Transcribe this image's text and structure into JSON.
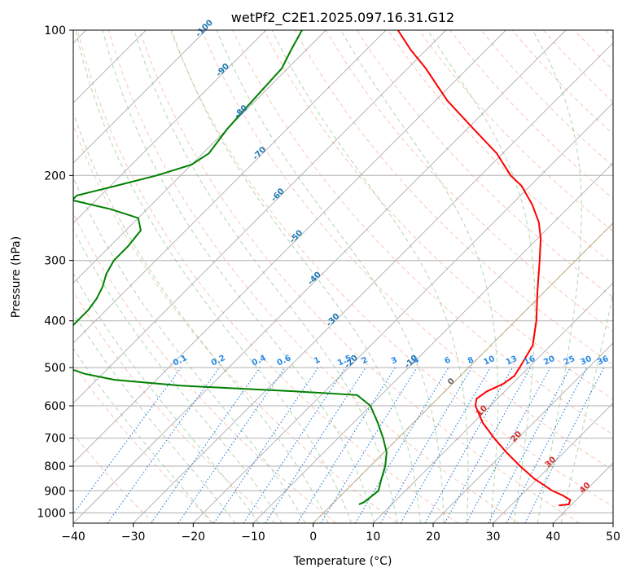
{
  "chart_data": {
    "type": "line",
    "title": "wetPf2_C2E1.2025.097.16.31.G12",
    "xlabel": "Temperature (°C)",
    "ylabel": "Pressure (hPa)",
    "xlim": [
      -40,
      50
    ],
    "ylim": [
      1050,
      100
    ],
    "y_scale": "log",
    "grid": true,
    "x_ticks": [
      -40,
      -30,
      -20,
      -10,
      0,
      10,
      20,
      30,
      40,
      50
    ],
    "y_ticks": [
      100,
      200,
      300,
      400,
      500,
      600,
      700,
      800,
      900,
      1000
    ],
    "isotherm_labels": [
      -100,
      -90,
      -80,
      -70,
      -60,
      -50,
      -40,
      -30,
      -20,
      -10,
      0,
      10,
      20,
      30,
      40
    ],
    "mixing_ratio_labels": [
      "0.1",
      "0.2",
      "0.4",
      "0.6",
      "1",
      "1.5",
      "2",
      "3",
      "4",
      "6",
      "8",
      "10",
      "13",
      "16",
      "20",
      "25",
      "30",
      "36"
    ],
    "series": [
      {
        "color": "#ff0000",
        "pressure": [
          965,
          960,
          940,
          920,
          900,
          850,
          800,
          750,
          700,
          650,
          600,
          580,
          560,
          540,
          520,
          500,
          450,
          400,
          350,
          300,
          270,
          250,
          230,
          210,
          200,
          180,
          160,
          140,
          120,
          110,
          100
        ],
        "temperature": [
          38,
          39.5,
          39,
          37,
          34.5,
          29.5,
          25,
          20.5,
          16,
          11.5,
          7.5,
          6.5,
          7,
          8.5,
          9,
          8.5,
          7,
          3.5,
          -1,
          -6,
          -9.5,
          -12.5,
          -16.5,
          -21.5,
          -25,
          -31,
          -39,
          -48,
          -57,
          -62.5,
          -68
        ]
      },
      {
        "color": "#008000",
        "pressure": [
          960,
          950,
          900,
          850,
          800,
          750,
          700,
          650,
          600,
          570,
          560,
          545,
          530,
          515,
          500,
          480,
          460,
          440,
          420,
          400,
          380,
          360,
          340,
          320,
          300,
          280,
          260,
          245,
          235,
          225,
          220,
          210,
          200,
          190,
          180,
          160,
          140,
          120,
          110,
          100
        ],
        "temperature": [
          4.5,
          5,
          5.5,
          4,
          2.5,
          0.5,
          -2.5,
          -6,
          -10,
          -14,
          -25,
          -45,
          -57,
          -63,
          -67,
          -71,
          -72,
          -73,
          -73,
          -73,
          -73,
          -73.5,
          -74.5,
          -76,
          -77,
          -77,
          -77.5,
          -80,
          -86,
          -94,
          -94,
          -89,
          -84,
          -80,
          -79,
          -80,
          -80.5,
          -81,
          -82.5,
          -84
        ]
      }
    ]
  }
}
